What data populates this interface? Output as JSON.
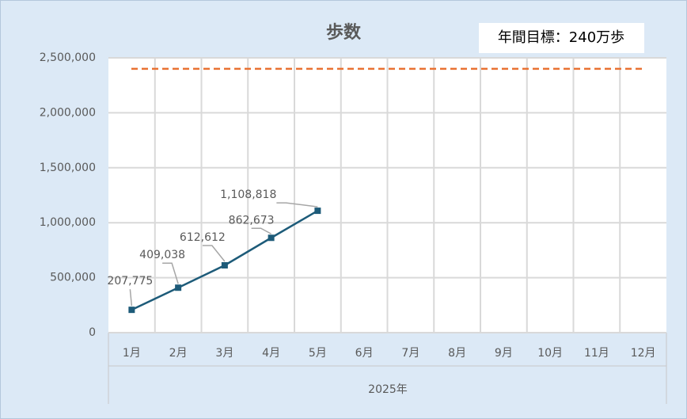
{
  "chart_data": {
    "type": "line",
    "title": "歩数",
    "categories": [
      "1月",
      "2月",
      "3月",
      "4月",
      "5月",
      "6月",
      "7月",
      "8月",
      "9月",
      "10月",
      "11月",
      "12月"
    ],
    "xlabel": "2025年",
    "series": [
      {
        "name": "歩数",
        "color": "#1d5b79",
        "values": [
          207775,
          409038,
          612612,
          862673,
          1108818,
          null,
          null,
          null,
          null,
          null,
          null,
          null
        ],
        "value_labels": [
          "207,775",
          "409,038",
          "612,612",
          "862,673",
          "1,108,818",
          null,
          null,
          null,
          null,
          null,
          null,
          null
        ]
      }
    ],
    "ylim": [
      0,
      2500000
    ],
    "yticks": [
      0,
      {
        "value": 500000,
        "label": "500,000"
      },
      {
        "value": 1000000,
        "label": "1,000,000"
      },
      {
        "value": 1500000,
        "label": "1,500,000"
      },
      {
        "value": 2000000,
        "label": "2,000,000"
      },
      {
        "value": 2500000,
        "label": "2,500,000"
      }
    ],
    "grid": true,
    "target": {
      "value": 2400000,
      "label": "年間目標：240万歩",
      "color": "#e97132"
    }
  }
}
